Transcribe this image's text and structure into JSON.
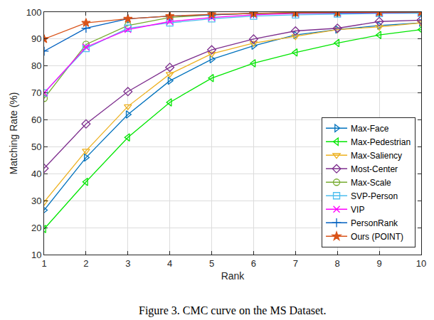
{
  "chart_data": {
    "type": "line",
    "caption": "Figure 3. CMC curve on the MS Dataset.",
    "x_label": "Rank",
    "y_label": "Matching Rate (%)",
    "x": [
      1,
      2,
      3,
      4,
      5,
      6,
      7,
      8,
      9,
      10
    ],
    "xlim": [
      1,
      10
    ],
    "xticks": [
      1,
      2,
      3,
      4,
      5,
      6,
      7,
      8,
      9,
      10
    ],
    "ylim": [
      10,
      100
    ],
    "yticks": [
      10,
      20,
      30,
      40,
      50,
      60,
      70,
      80,
      90,
      100
    ],
    "grid": true,
    "legend": "lower right",
    "series": [
      {
        "name": "Max-Face",
        "color": "#0072BD",
        "marker": "triangle-right",
        "values": [
          26.5,
          46,
          62,
          74.5,
          82.5,
          87.5,
          91.5,
          93.5,
          95,
          96
        ]
      },
      {
        "name": "Max-Pedestrian",
        "color": "#00E600",
        "marker": "triangle-left",
        "values": [
          19.5,
          37,
          53.5,
          66.5,
          75.5,
          81,
          85,
          88.5,
          91.5,
          93.5
        ]
      },
      {
        "name": "Max-Saliency",
        "color": "#EDB120",
        "marker": "triangle-down",
        "values": [
          29.5,
          48.5,
          65,
          77,
          84.5,
          88.5,
          91,
          93.5,
          94.5,
          96
        ]
      },
      {
        "name": "Most-Center",
        "color": "#7E2F8E",
        "marker": "diamond",
        "values": [
          42,
          58.5,
          70.5,
          79.5,
          86,
          90,
          93,
          94,
          96.5,
          97
        ]
      },
      {
        "name": "Max-Scale",
        "color": "#77AC30",
        "marker": "circle",
        "values": [
          68,
          88,
          95,
          98,
          99,
          99.5,
          99.7,
          99.8,
          99.9,
          100
        ]
      },
      {
        "name": "SVP-Person",
        "color": "#4DBEEE",
        "marker": "square",
        "values": [
          70,
          86.5,
          94,
          96,
          97.5,
          98.5,
          99,
          99.3,
          99.5,
          99.6
        ]
      },
      {
        "name": "VIP",
        "color": "#FF00FF",
        "marker": "x",
        "values": [
          70,
          87,
          93.5,
          96.5,
          98,
          99,
          99.5,
          99.7,
          99.8,
          99.9
        ]
      },
      {
        "name": "PersonRank",
        "color": "#0060C0",
        "marker": "plus",
        "values": [
          85.5,
          94,
          97.5,
          98.5,
          99,
          99.5,
          99.7,
          99.8,
          99.9,
          99.9
        ]
      },
      {
        "name": "Ours (POINT)",
        "color": "#D95319",
        "marker": "star",
        "values": [
          90,
          96,
          97.5,
          98.5,
          99.2,
          99.5,
          99.8,
          99.9,
          100,
          100
        ]
      }
    ]
  }
}
